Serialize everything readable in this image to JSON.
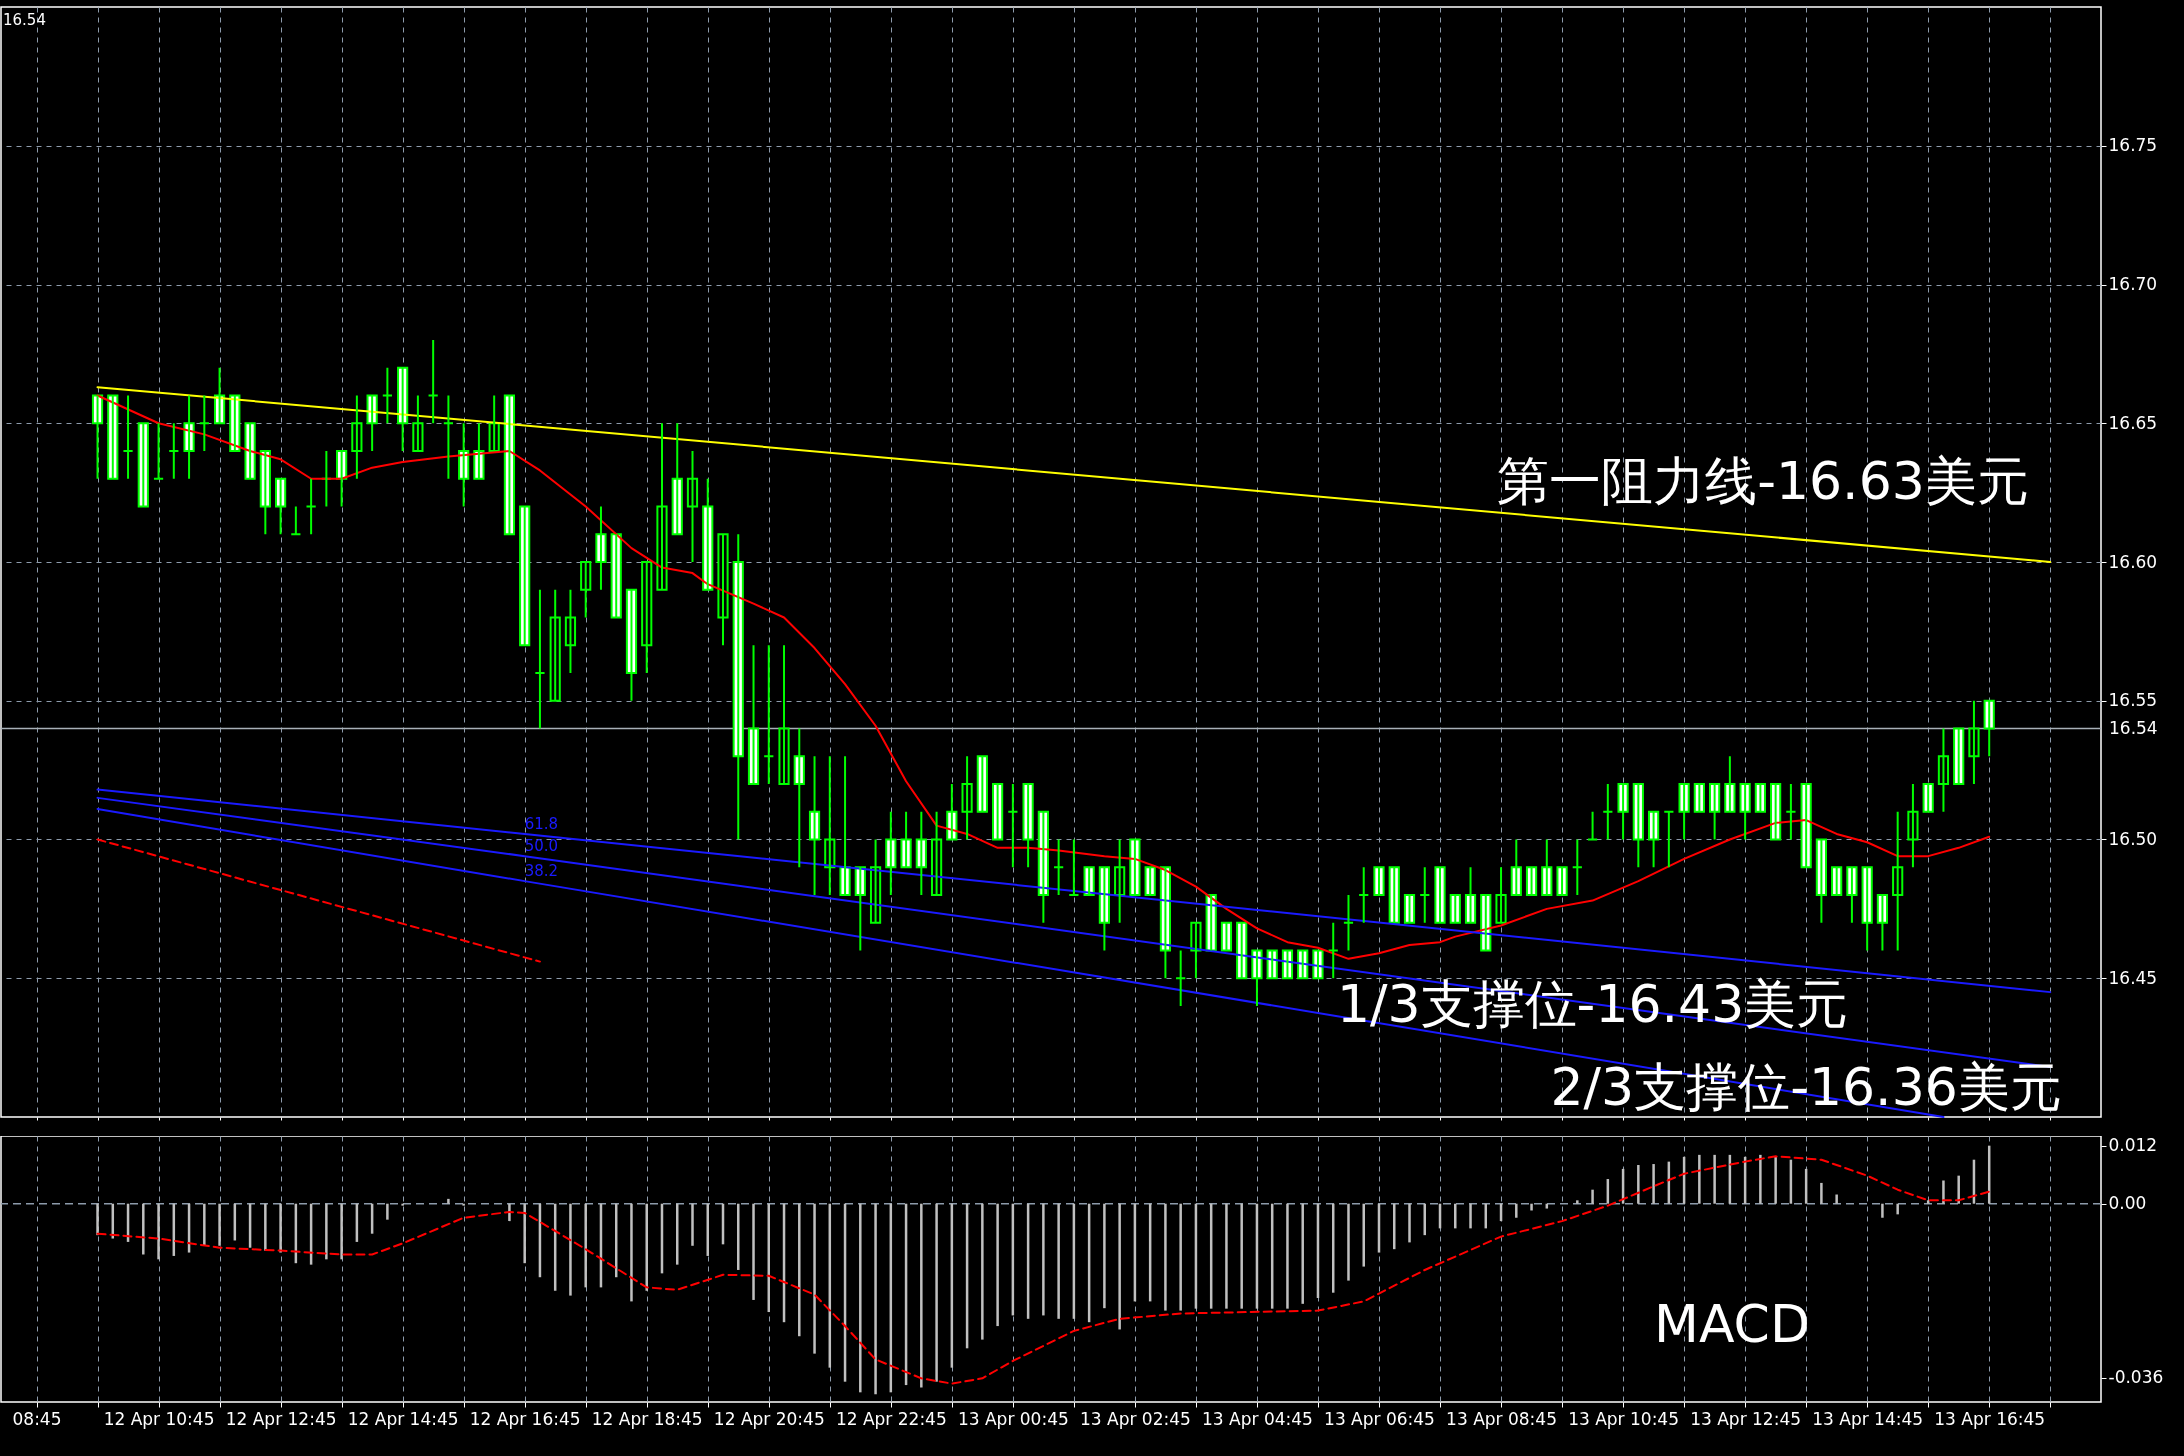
{
  "chart_data": [
    {
      "type": "candlestick",
      "x": [
        "--04-12T09:45",
        "--04-12T10:00",
        "--04-12T10:15",
        "--04-12T10:30",
        "--04-12T10:45",
        "--04-12T11:00",
        "--04-12T11:15",
        "--04-12T11:30",
        "--04-12T11:45",
        "--04-12T12:00",
        "--04-12T12:15",
        "--04-12T12:30",
        "--04-12T12:45",
        "--04-12T13:00",
        "--04-12T13:15",
        "--04-12T13:30",
        "--04-12T13:45",
        "--04-12T14:00",
        "--04-12T14:15",
        "--04-12T14:30",
        "--04-12T14:45",
        "--04-12T15:00",
        "--04-12T15:15",
        "--04-12T15:30",
        "--04-12T15:45",
        "--04-12T16:00",
        "--04-12T16:15",
        "--04-12T16:30",
        "--04-12T16:45",
        "--04-12T17:00",
        "--04-12T17:15",
        "--04-12T17:30",
        "--04-12T17:45",
        "--04-12T18:00",
        "--04-12T18:15",
        "--04-12T18:30",
        "--04-12T18:45",
        "--04-12T19:00",
        "--04-12T19:15",
        "--04-12T19:30",
        "--04-12T19:45",
        "--04-12T20:00",
        "--04-12T20:15",
        "--04-12T20:30",
        "--04-12T20:45",
        "--04-12T21:00",
        "--04-12T21:15",
        "--04-12T21:30",
        "--04-12T21:45",
        "--04-12T22:00",
        "--04-12T22:15",
        "--04-12T22:30",
        "--04-12T22:45",
        "--04-12T23:00",
        "--04-12T23:15",
        "--04-12T23:30",
        "--04-12T23:45",
        "--04-13T00:00",
        "--04-13T00:15",
        "--04-13T00:30",
        "--04-13T00:45",
        "--04-13T01:00",
        "--04-13T01:15",
        "--04-13T01:30",
        "--04-13T01:45",
        "--04-13T02:00",
        "--04-13T02:15",
        "--04-13T02:30",
        "--04-13T02:45",
        "--04-13T03:00",
        "--04-13T03:15",
        "--04-13T03:30",
        "--04-13T03:45",
        "--04-13T04:00",
        "--04-13T04:15",
        "--04-13T04:30",
        "--04-13T04:45",
        "--04-13T05:00",
        "--04-13T05:15",
        "--04-13T05:30",
        "--04-13T05:45",
        "--04-13T06:00",
        "--04-13T06:15",
        "--04-13T06:30",
        "--04-13T06:45",
        "--04-13T07:00",
        "--04-13T07:15",
        "--04-13T07:30",
        "--04-13T07:45",
        "--04-13T08:00",
        "--04-13T08:15",
        "--04-13T08:30",
        "--04-13T08:45",
        "--04-13T09:00",
        "--04-13T09:15",
        "--04-13T09:30",
        "--04-13T09:45",
        "--04-13T10:00",
        "--04-13T10:15",
        "--04-13T10:30",
        "--04-13T10:45",
        "--04-13T11:00",
        "--04-13T11:15",
        "--04-13T11:30",
        "--04-13T11:45",
        "--04-13T12:00",
        "--04-13T12:15",
        "--04-13T12:30",
        "--04-13T12:45",
        "--04-13T13:00",
        "--04-13T13:15",
        "--04-13T13:30",
        "--04-13T13:45",
        "--04-13T14:00",
        "--04-13T14:15",
        "--04-13T14:30",
        "--04-13T14:45",
        "--04-13T15:00",
        "--04-13T15:15",
        "--04-13T15:30",
        "--04-13T15:45",
        "--04-13T16:00",
        "--04-13T16:15",
        "--04-13T16:30",
        "--04-13T16:45"
      ],
      "ohlc": [
        [
          16.66,
          16.66,
          16.63,
          16.65
        ],
        [
          16.66,
          16.66,
          16.63,
          16.63
        ],
        [
          16.64,
          16.66,
          16.63,
          16.64
        ],
        [
          16.65,
          16.65,
          16.62,
          16.62
        ],
        [
          16.63,
          16.65,
          16.63,
          16.63
        ],
        [
          16.64,
          16.65,
          16.63,
          16.64
        ],
        [
          16.65,
          16.66,
          16.63,
          16.64
        ],
        [
          16.65,
          16.66,
          16.64,
          16.65
        ],
        [
          16.66,
          16.67,
          16.65,
          16.65
        ],
        [
          16.66,
          16.66,
          16.64,
          16.64
        ],
        [
          16.65,
          16.65,
          16.63,
          16.63
        ],
        [
          16.64,
          16.64,
          16.61,
          16.62
        ],
        [
          16.63,
          16.63,
          16.61,
          16.62
        ],
        [
          16.61,
          16.62,
          16.61,
          16.61
        ],
        [
          16.62,
          16.63,
          16.61,
          16.62
        ],
        [
          16.63,
          16.64,
          16.62,
          16.63
        ],
        [
          16.64,
          16.64,
          16.62,
          16.63
        ],
        [
          16.64,
          16.66,
          16.63,
          16.65
        ],
        [
          16.66,
          16.66,
          16.64,
          16.65
        ],
        [
          16.66,
          16.67,
          16.65,
          16.66
        ],
        [
          16.67,
          16.67,
          16.64,
          16.65
        ],
        [
          16.64,
          16.66,
          16.64,
          16.65
        ],
        [
          16.66,
          16.68,
          16.65,
          16.66
        ],
        [
          16.65,
          16.66,
          16.63,
          16.65
        ],
        [
          16.64,
          16.65,
          16.62,
          16.63
        ],
        [
          16.64,
          16.65,
          16.63,
          16.63
        ],
        [
          16.64,
          16.66,
          16.64,
          16.65
        ],
        [
          16.66,
          16.66,
          16.61,
          16.61
        ],
        [
          16.62,
          16.62,
          16.57,
          16.57
        ],
        [
          16.56,
          16.59,
          16.54,
          16.56
        ],
        [
          16.55,
          16.59,
          16.55,
          16.58
        ],
        [
          16.57,
          16.59,
          16.56,
          16.58
        ],
        [
          16.59,
          16.6,
          16.58,
          16.6
        ],
        [
          16.61,
          16.62,
          16.59,
          16.6
        ],
        [
          16.61,
          16.61,
          16.58,
          16.58
        ],
        [
          16.59,
          16.59,
          16.55,
          16.56
        ],
        [
          16.57,
          16.6,
          16.56,
          16.6
        ],
        [
          16.59,
          16.65,
          16.59,
          16.62
        ],
        [
          16.63,
          16.65,
          16.61,
          16.61
        ],
        [
          16.62,
          16.64,
          16.6,
          16.63
        ],
        [
          16.62,
          16.63,
          16.59,
          16.59
        ],
        [
          16.58,
          16.61,
          16.57,
          16.61
        ],
        [
          16.6,
          16.61,
          16.5,
          16.53
        ],
        [
          16.54,
          16.57,
          16.52,
          16.52
        ],
        [
          16.53,
          16.57,
          16.52,
          16.53
        ],
        [
          16.52,
          16.57,
          16.52,
          16.54
        ],
        [
          16.53,
          16.54,
          16.49,
          16.52
        ],
        [
          16.51,
          16.53,
          16.48,
          16.5
        ],
        [
          16.49,
          16.53,
          16.48,
          16.5
        ],
        [
          16.49,
          16.53,
          16.48,
          16.48
        ],
        [
          16.49,
          16.49,
          16.46,
          16.48
        ],
        [
          16.47,
          16.5,
          16.47,
          16.49
        ],
        [
          16.5,
          16.51,
          16.48,
          16.49
        ],
        [
          16.5,
          16.51,
          16.49,
          16.49
        ],
        [
          16.5,
          16.51,
          16.48,
          16.49
        ],
        [
          16.48,
          16.51,
          16.48,
          16.5
        ],
        [
          16.51,
          16.52,
          16.5,
          16.5
        ],
        [
          16.51,
          16.53,
          16.5,
          16.52
        ],
        [
          16.53,
          16.53,
          16.51,
          16.51
        ],
        [
          16.52,
          16.52,
          16.5,
          16.5
        ],
        [
          16.51,
          16.52,
          16.49,
          16.51
        ],
        [
          16.52,
          16.52,
          16.49,
          16.5
        ],
        [
          16.51,
          16.51,
          16.47,
          16.48
        ],
        [
          16.49,
          16.5,
          16.48,
          16.49
        ],
        [
          16.48,
          16.5,
          16.48,
          16.48
        ],
        [
          16.49,
          16.49,
          16.48,
          16.48
        ],
        [
          16.49,
          16.49,
          16.46,
          16.47
        ],
        [
          16.48,
          16.5,
          16.47,
          16.49
        ],
        [
          16.5,
          16.5,
          16.48,
          16.48
        ],
        [
          16.49,
          16.49,
          16.48,
          16.48
        ],
        [
          16.49,
          16.49,
          16.45,
          16.46
        ],
        [
          16.45,
          16.46,
          16.44,
          16.45
        ],
        [
          16.46,
          16.47,
          16.45,
          16.47
        ],
        [
          16.48,
          16.48,
          16.46,
          16.46
        ],
        [
          16.47,
          16.47,
          16.46,
          16.46
        ],
        [
          16.47,
          16.47,
          16.45,
          16.45
        ],
        [
          16.46,
          16.46,
          16.44,
          16.45
        ],
        [
          16.46,
          16.46,
          16.45,
          16.45
        ],
        [
          16.46,
          16.46,
          16.45,
          16.45
        ],
        [
          16.46,
          16.46,
          16.45,
          16.45
        ],
        [
          16.46,
          16.46,
          16.45,
          16.45
        ],
        [
          16.46,
          16.47,
          16.45,
          16.46
        ],
        [
          16.47,
          16.48,
          16.46,
          16.47
        ],
        [
          16.48,
          16.49,
          16.47,
          16.48
        ],
        [
          16.49,
          16.49,
          16.48,
          16.48
        ],
        [
          16.49,
          16.49,
          16.47,
          16.47
        ],
        [
          16.48,
          16.48,
          16.47,
          16.47
        ],
        [
          16.48,
          16.49,
          16.47,
          16.48
        ],
        [
          16.49,
          16.49,
          16.47,
          16.47
        ],
        [
          16.48,
          16.48,
          16.47,
          16.47
        ],
        [
          16.48,
          16.49,
          16.47,
          16.47
        ],
        [
          16.48,
          16.48,
          16.46,
          16.46
        ],
        [
          16.47,
          16.49,
          16.47,
          16.48
        ],
        [
          16.49,
          16.5,
          16.48,
          16.48
        ],
        [
          16.49,
          16.49,
          16.48,
          16.48
        ],
        [
          16.49,
          16.5,
          16.48,
          16.48
        ],
        [
          16.49,
          16.49,
          16.48,
          16.48
        ],
        [
          16.49,
          16.5,
          16.48,
          16.49
        ],
        [
          16.5,
          16.51,
          16.5,
          16.5
        ],
        [
          16.51,
          16.52,
          16.5,
          16.51
        ],
        [
          16.52,
          16.52,
          16.5,
          16.51
        ],
        [
          16.52,
          16.52,
          16.49,
          16.5
        ],
        [
          16.51,
          16.51,
          16.49,
          16.5
        ],
        [
          16.51,
          16.51,
          16.49,
          16.51
        ],
        [
          16.52,
          16.52,
          16.5,
          16.51
        ],
        [
          16.52,
          16.52,
          16.51,
          16.51
        ],
        [
          16.52,
          16.52,
          16.5,
          16.51
        ],
        [
          16.52,
          16.53,
          16.51,
          16.51
        ],
        [
          16.52,
          16.52,
          16.5,
          16.51
        ],
        [
          16.52,
          16.52,
          16.51,
          16.51
        ],
        [
          16.52,
          16.52,
          16.5,
          16.5
        ],
        [
          16.51,
          16.52,
          16.5,
          16.51
        ],
        [
          16.52,
          16.52,
          16.49,
          16.49
        ],
        [
          16.5,
          16.5,
          16.47,
          16.48
        ],
        [
          16.49,
          16.49,
          16.48,
          16.48
        ],
        [
          16.49,
          16.49,
          16.47,
          16.48
        ],
        [
          16.49,
          16.49,
          16.46,
          16.47
        ],
        [
          16.48,
          16.48,
          16.46,
          16.47
        ],
        [
          16.48,
          16.51,
          16.46,
          16.49
        ],
        [
          16.5,
          16.52,
          16.49,
          16.51
        ],
        [
          16.52,
          16.52,
          16.51,
          16.51
        ],
        [
          16.52,
          16.54,
          16.51,
          16.53
        ],
        [
          16.54,
          16.54,
          16.52,
          16.52
        ],
        [
          16.53,
          16.55,
          16.52,
          16.54
        ],
        [
          16.55,
          16.55,
          16.53,
          16.54
        ]
      ],
      "color": "#00ff00",
      "series": [
        {
          "type": "line",
          "color": "#ff0000",
          "x": [
            "--04-12T09:45",
            "--04-12T10:45",
            "--04-12T11:30",
            "--04-12T12:15",
            "--04-12T12:45",
            "--04-12T13:15",
            "--04-12T13:45",
            "--04-12T14:15",
            "--04-12T14:45",
            "--04-12T15:30",
            "--04-12T16:00",
            "--04-12T16:30",
            "--04-12T17:00",
            "--04-12T17:45",
            "--04-12T18:30",
            "--04-12T19:00",
            "--04-12T19:30",
            "--04-12T19:45",
            "--04-12T20:30",
            "--04-12T21:00",
            "--04-12T21:30",
            "--04-12T22:00",
            "--04-12T22:30",
            "--04-12T23:00",
            "--04-12T23:30",
            "--04-13T00:00",
            "--04-13T00:30",
            "--04-13T01:00",
            "--04-13T01:30",
            "--04-13T02:15",
            "--04-13T02:45",
            "--04-13T03:15",
            "--04-13T03:45",
            "--04-13T04:15",
            "--04-13T04:45",
            "--04-13T05:15",
            "--04-13T05:45",
            "--04-13T06:15",
            "--04-13T06:45",
            "--04-13T07:15",
            "--04-13T07:45",
            "--04-13T08:00",
            "--04-13T08:45",
            "--04-13T09:30",
            "--04-13T10:15",
            "--04-13T11:00",
            "--04-13T11:45",
            "--04-13T12:30",
            "--04-13T13:15",
            "--04-13T13:45",
            "--04-13T14:15",
            "--04-13T14:45",
            "--04-13T15:15",
            "--04-13T15:45",
            "--04-13T16:15",
            "--04-13T16:45"
          ],
          "values": [
            16.66,
            16.65,
            16.646,
            16.64,
            16.637,
            16.63,
            16.63,
            16.634,
            16.636,
            16.638,
            16.639,
            16.64,
            16.633,
            16.62,
            16.605,
            16.598,
            16.596,
            16.592,
            16.585,
            16.58,
            16.569,
            16.556,
            16.541,
            16.521,
            16.505,
            16.502,
            16.497,
            16.497,
            16.496,
            16.494,
            16.493,
            16.489,
            16.483,
            16.475,
            16.468,
            16.463,
            16.461,
            16.457,
            16.459,
            16.462,
            16.463,
            16.465,
            16.469,
            16.475,
            16.478,
            16.485,
            16.493,
            16.5,
            16.506,
            16.507,
            16.502,
            16.499,
            16.494,
            16.494,
            16.497,
            16.501
          ]
        },
        {
          "type": "line",
          "color": "#ffff00",
          "x": [
            "--04-12T09:45",
            "--04-13T17:45"
          ],
          "values": [
            16.663,
            16.6
          ]
        },
        {
          "type": "line",
          "name": "61.8",
          "color": "#1a1aff",
          "x": [
            "--04-12T09:45",
            "--04-12T16:45",
            "--04-13T17:45"
          ],
          "values": [
            16.518,
            16.502,
            16.445
          ]
        },
        {
          "type": "line",
          "name": "50.0",
          "color": "#1a1aff",
          "x": [
            "--04-12T09:45",
            "--04-12T16:45",
            "--04-13T17:45"
          ],
          "values": [
            16.515,
            16.494,
            16.418
          ]
        },
        {
          "type": "line",
          "name": "38.2",
          "color": "#1a1aff",
          "x": [
            "--04-12T09:45",
            "--04-12T16:45",
            "--04-13T16:00"
          ],
          "values": [
            16.511,
            16.485,
            16.4
          ]
        },
        {
          "type": "line",
          "color": "#ff0000",
          "line_style": "dashed",
          "x": [
            "--04-12T09:45",
            "--04-12T17:00"
          ],
          "values": [
            16.5,
            16.456
          ]
        }
      ],
      "xlim": [
        "--04-12T08:15",
        "--04-13T18:30"
      ],
      "xticks": [
        {
          "value": "--04-12T08:45",
          "label": "08:45"
        },
        {
          "value": "--04-12T09:45",
          "label": null
        },
        {
          "value": "--04-12T10:45",
          "label": "12 Apr 10:45"
        },
        {
          "value": "--04-12T11:45",
          "label": null
        },
        {
          "value": "--04-12T12:45",
          "label": "12 Apr 12:45"
        },
        {
          "value": "--04-12T13:45",
          "label": null
        },
        {
          "value": "--04-12T14:45",
          "label": "12 Apr 14:45"
        },
        {
          "value": "--04-12T15:45",
          "label": null
        },
        {
          "value": "--04-12T16:45",
          "label": "12 Apr 16:45"
        },
        {
          "value": "--04-12T17:45",
          "label": null
        },
        {
          "value": "--04-12T18:45",
          "label": "12 Apr 18:45"
        },
        {
          "value": "--04-12T19:45",
          "label": null
        },
        {
          "value": "--04-12T20:45",
          "label": "12 Apr 20:45"
        },
        {
          "value": "--04-12T21:45",
          "label": null
        },
        {
          "value": "--04-12T22:45",
          "label": "12 Apr 22:45"
        },
        {
          "value": "--04-12T23:45",
          "label": null
        },
        {
          "value": "--04-13T00:45",
          "label": "13 Apr 00:45"
        },
        {
          "value": "--04-13T01:45",
          "label": null
        },
        {
          "value": "--04-13T02:45",
          "label": "13 Apr 02:45"
        },
        {
          "value": "--04-13T03:45",
          "label": null
        },
        {
          "value": "--04-13T04:45",
          "label": "13 Apr 04:45"
        },
        {
          "value": "--04-13T05:45",
          "label": null
        },
        {
          "value": "--04-13T06:45",
          "label": "13 Apr 06:45"
        },
        {
          "value": "--04-13T07:45",
          "label": null
        },
        {
          "value": "--04-13T08:45",
          "label": "13 Apr 08:45"
        },
        {
          "value": "--04-13T09:45",
          "label": null
        },
        {
          "value": "--04-13T10:45",
          "label": "13 Apr 10:45"
        },
        {
          "value": "--04-13T11:45",
          "label": null
        },
        {
          "value": "--04-13T12:45",
          "label": "13 Apr 12:45"
        },
        {
          "value": "--04-13T13:45",
          "label": null
        },
        {
          "value": "--04-13T14:45",
          "label": "13 Apr 14:45"
        },
        {
          "value": "--04-13T15:45",
          "label": null
        },
        {
          "value": "--04-13T16:45",
          "label": "13 Apr 16:45"
        },
        {
          "value": "--04-13T17:45",
          "label": null
        }
      ],
      "ylim": [
        16.4,
        16.8
      ],
      "yticks": [
        16.45,
        {
          "value": 16.5,
          "label": "16.50"
        },
        16.55,
        {
          "value": 16.6,
          "label": "16.60"
        },
        16.65,
        {
          "value": 16.7,
          "label": "16.70"
        },
        16.75
      ],
      "grid": true,
      "tick_labels": "y",
      "ref_lines": [
        {
          "axis": "y",
          "value": 16.54,
          "label": "16.54",
          "color": "#a8b0b8"
        }
      ],
      "annotations": [
        "16.54",
        "第一阻力线-16.63美元",
        {
          "text": "1/3支撑位-16.43美元",
          "x": "--04-13T10:15",
          "y": 16.44
        },
        {
          "text": "2/3支撑位-16.36美元",
          "x": "--04-13T13:45",
          "y": 16.41
        }
      ]
    },
    {
      "type": "bar",
      "x": [
        "--04-12T09:45",
        "--04-12T10:00",
        "--04-12T10:15",
        "--04-12T10:30",
        "--04-12T10:45",
        "--04-12T11:00",
        "--04-12T11:15",
        "--04-12T11:30",
        "--04-12T11:45",
        "--04-12T12:00",
        "--04-12T12:15",
        "--04-12T12:30",
        "--04-12T12:45",
        "--04-12T13:00",
        "--04-12T13:15",
        "--04-12T13:30",
        "--04-12T13:45",
        "--04-12T14:00",
        "--04-12T14:15",
        "--04-12T14:30",
        "--04-12T14:45",
        "--04-12T15:00",
        "--04-12T15:15",
        "--04-12T15:30",
        "--04-12T15:45",
        "--04-12T16:00",
        "--04-12T16:15",
        "--04-12T16:30",
        "--04-12T16:45",
        "--04-12T17:00",
        "--04-12T17:15",
        "--04-12T17:30",
        "--04-12T17:45",
        "--04-12T18:00",
        "--04-12T18:15",
        "--04-12T18:30",
        "--04-12T18:45",
        "--04-12T19:00",
        "--04-12T19:15",
        "--04-12T19:30",
        "--04-12T19:45",
        "--04-12T20:00",
        "--04-12T20:15",
        "--04-12T20:30",
        "--04-12T20:45",
        "--04-12T21:00",
        "--04-12T21:15",
        "--04-12T21:30",
        "--04-12T21:45",
        "--04-12T22:00",
        "--04-12T22:15",
        "--04-12T22:30",
        "--04-12T22:45",
        "--04-12T23:00",
        "--04-12T23:15",
        "--04-12T23:30",
        "--04-12T23:45",
        "--04-13T00:00",
        "--04-13T00:15",
        "--04-13T00:30",
        "--04-13T00:45",
        "--04-13T01:00",
        "--04-13T01:15",
        "--04-13T01:30",
        "--04-13T01:45",
        "--04-13T02:00",
        "--04-13T02:15",
        "--04-13T02:30",
        "--04-13T02:45",
        "--04-13T03:00",
        "--04-13T03:15",
        "--04-13T03:30",
        "--04-13T03:45",
        "--04-13T04:00",
        "--04-13T04:15",
        "--04-13T04:30",
        "--04-13T04:45",
        "--04-13T05:00",
        "--04-13T05:15",
        "--04-13T05:30",
        "--04-13T05:45",
        "--04-13T06:00",
        "--04-13T06:15",
        "--04-13T06:30",
        "--04-13T06:45",
        "--04-13T07:00",
        "--04-13T07:15",
        "--04-13T07:30",
        "--04-13T07:45",
        "--04-13T08:00",
        "--04-13T08:15",
        "--04-13T08:30",
        "--04-13T08:45",
        "--04-13T09:00",
        "--04-13T09:15",
        "--04-13T09:30",
        "--04-13T09:45",
        "--04-13T10:00",
        "--04-13T10:15",
        "--04-13T10:30",
        "--04-13T10:45",
        "--04-13T11:00",
        "--04-13T11:15",
        "--04-13T11:30",
        "--04-13T11:45",
        "--04-13T12:00",
        "--04-13T12:15",
        "--04-13T12:30",
        "--04-13T12:45",
        "--04-13T13:00",
        "--04-13T13:15",
        "--04-13T13:30",
        "--04-13T13:45",
        "--04-13T14:00",
        "--04-13T14:15",
        "--04-13T14:30",
        "--04-13T14:45",
        "--04-13T15:00",
        "--04-13T15:15",
        "--04-13T15:30",
        "--04-13T15:45",
        "--04-13T16:00",
        "--04-13T16:15",
        "--04-13T16:30",
        "--04-13T16:45"
      ],
      "values": [
        -0.0065,
        -0.0072,
        -0.0079,
        -0.0105,
        -0.0115,
        -0.0108,
        -0.0101,
        -0.0087,
        -0.0087,
        -0.0076,
        -0.0091,
        -0.0097,
        -0.0101,
        -0.0123,
        -0.0126,
        -0.0115,
        -0.0115,
        -0.0079,
        -0.0062,
        -0.0033,
        -0.0004,
        null,
        null,
        0.001,
        -0.0004,
        null,
        null,
        -0.0036,
        -0.0123,
        -0.0152,
        -0.018,
        -0.019,
        -0.0173,
        -0.0173,
        -0.0152,
        -0.0202,
        -0.018,
        -0.0144,
        -0.0126,
        -0.0087,
        -0.0108,
        -0.0084,
        -0.0137,
        -0.0199,
        -0.0224,
        -0.0245,
        -0.0274,
        -0.031,
        -0.0339,
        -0.0368,
        -0.039,
        -0.0394,
        -0.039,
        -0.0375,
        -0.038,
        -0.0368,
        -0.0339,
        -0.0299,
        -0.0281,
        -0.0253,
        -0.0231,
        -0.0238,
        -0.0231,
        -0.0238,
        -0.0238,
        -0.0245,
        -0.0216,
        -0.026,
        -0.0202,
        -0.0202,
        -0.0221,
        -0.0221,
        -0.0217,
        -0.0217,
        -0.0217,
        -0.0217,
        -0.0217,
        -0.0217,
        -0.0217,
        -0.0207,
        -0.0195,
        -0.0184,
        -0.0159,
        -0.013,
        -0.0101,
        -0.0094,
        -0.008,
        -0.0065,
        -0.0051,
        -0.0051,
        -0.0051,
        -0.0051,
        -0.0036,
        -0.0029,
        -0.0014,
        -0.001,
        null,
        0.0007,
        0.0029,
        0.0051,
        0.0072,
        0.008,
        0.0082,
        0.0087,
        0.0097,
        0.0101,
        0.0101,
        0.0101,
        0.0097,
        0.0101,
        0.0097,
        0.0091,
        0.0072,
        0.0043,
        0.0019,
        0,
        null,
        -0.0029,
        -0.0022,
        0,
        0.0007,
        0.0048,
        0.0058,
        0.0091,
        0.012
      ],
      "color": "#c0c0c0",
      "series": [
        {
          "type": "line",
          "color": "#ff0000",
          "line_style": "dashed",
          "x": [
            "--04-12T09:45",
            "--04-12T10:45",
            "--04-12T11:45",
            "--04-12T12:45",
            "--04-12T13:45",
            "--04-12T14:15",
            "--04-12T14:45",
            "--04-12T15:45",
            "--04-12T16:30",
            "--04-12T16:45",
            "--04-12T17:45",
            "--04-12T18:45",
            "--04-12T19:15",
            "--04-12T20:00",
            "--04-12T20:45",
            "--04-12T21:30",
            "--04-12T22:00",
            "--04-12T22:30",
            "--04-12T23:15",
            "--04-12T23:45",
            "--04-13T00:15",
            "--04-13T00:45",
            "--04-13T01:45",
            "--04-13T02:30",
            "--04-13T03:30",
            "--04-13T05:45",
            "--04-13T06:30",
            "--04-13T07:30",
            "--04-13T08:45",
            "--04-13T09:45",
            "--04-13T10:30",
            "--04-13T11:15",
            "--04-13T11:45",
            "--04-13T12:45",
            "--04-13T13:15",
            "--04-13T14:00",
            "--04-13T14:45",
            "--04-13T15:15",
            "--04-13T15:45",
            "--04-13T16:15",
            "--04-13T16:45"
          ],
          "values": [
            -0.0062,
            -0.0072,
            -0.0091,
            -0.0097,
            -0.0105,
            -0.0105,
            -0.0082,
            -0.0029,
            -0.0017,
            -0.0019,
            -0.0094,
            -0.0173,
            -0.0178,
            -0.0147,
            -0.0149,
            -0.0188,
            -0.0253,
            -0.0322,
            -0.0361,
            -0.0372,
            -0.0361,
            -0.0325,
            -0.0263,
            -0.0238,
            -0.0227,
            -0.0221,
            -0.0202,
            -0.0137,
            -0.0068,
            -0.0036,
            -0.0004,
            0.0036,
            0.0062,
            0.0087,
            0.0098,
            0.0091,
            0.0058,
            0.0029,
            0.0007,
            0.0007,
            0.0025
          ]
        }
      ],
      "xlim": [
        "--04-12T08:15",
        "--04-13T18:30"
      ],
      "xticks": [
        {
          "value": "--04-12T08:45",
          "label": "08:45"
        },
        {
          "value": "--04-12T09:45",
          "label": null
        },
        {
          "value": "--04-12T10:45",
          "label": "12 Apr 10:45"
        },
        {
          "value": "--04-12T11:45",
          "label": null
        },
        {
          "value": "--04-12T12:45",
          "label": "12 Apr 12:45"
        },
        {
          "value": "--04-12T13:45",
          "label": null
        },
        {
          "value": "--04-12T14:45",
          "label": "12 Apr 14:45"
        },
        {
          "value": "--04-12T15:45",
          "label": null
        },
        {
          "value": "--04-12T16:45",
          "label": "12 Apr 16:45"
        },
        {
          "value": "--04-12T17:45",
          "label": null
        },
        {
          "value": "--04-12T18:45",
          "label": "12 Apr 18:45"
        },
        {
          "value": "--04-12T19:45",
          "label": null
        },
        {
          "value": "--04-12T20:45",
          "label": "12 Apr 20:45"
        },
        {
          "value": "--04-12T21:45",
          "label": null
        },
        {
          "value": "--04-12T22:45",
          "label": "12 Apr 22:45"
        },
        {
          "value": "--04-12T23:45",
          "label": null
        },
        {
          "value": "--04-13T00:45",
          "label": "13 Apr 00:45"
        },
        {
          "value": "--04-13T01:45",
          "label": null
        },
        {
          "value": "--04-13T02:45",
          "label": "13 Apr 02:45"
        },
        {
          "value": "--04-13T03:45",
          "label": null
        },
        {
          "value": "--04-13T04:45",
          "label": "13 Apr 04:45"
        },
        {
          "value": "--04-13T05:45",
          "label": null
        },
        {
          "value": "--04-13T06:45",
          "label": "13 Apr 06:45"
        },
        {
          "value": "--04-13T07:45",
          "label": null
        },
        {
          "value": "--04-13T08:45",
          "label": "13 Apr 08:45"
        },
        {
          "value": "--04-13T09:45",
          "label": null
        },
        {
          "value": "--04-13T10:45",
          "label": "13 Apr 10:45"
        },
        {
          "value": "--04-13T11:45",
          "label": null
        },
        {
          "value": "--04-13T12:45",
          "label": "13 Apr 12:45"
        },
        {
          "value": "--04-13T13:45",
          "label": null
        },
        {
          "value": "--04-13T14:45",
          "label": "13 Apr 14:45"
        },
        {
          "value": "--04-13T15:45",
          "label": null
        },
        {
          "value": "--04-13T16:45",
          "label": "13 Apr 16:45"
        },
        {
          "value": "--04-13T17:45",
          "label": null
        }
      ],
      "ylim": [
        -0.041,
        0.014
      ],
      "yticks": [
        -0.036,
        {
          "value": 0,
          "label": "0.00"
        },
        0.012
      ],
      "grid": "x",
      "ref_lines": [
        {
          "axis": "y",
          "value": 0,
          "color": "#8d9bab",
          "line_style": "dashed"
        }
      ],
      "annotations": [
        "MACD"
      ]
    }
  ]
}
